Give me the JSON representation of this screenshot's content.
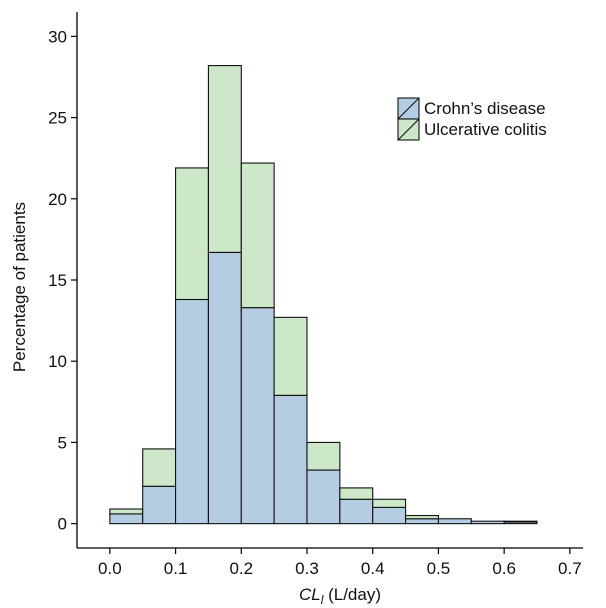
{
  "chart_data": {
    "type": "bar",
    "stacked": true,
    "bin_width": 0.05,
    "bin_starts": [
      0.0,
      0.05,
      0.1,
      0.15,
      0.2,
      0.25,
      0.3,
      0.35,
      0.4,
      0.45,
      0.5,
      0.55,
      0.6
    ],
    "series": [
      {
        "name": "Crohn’s disease",
        "color": "#b4cde3",
        "values": [
          0.6,
          2.3,
          13.8,
          16.7,
          13.3,
          7.9,
          3.3,
          1.5,
          1.0,
          0.3,
          0.3,
          0.15,
          0.1
        ]
      },
      {
        "name": "Ulcerative colitis",
        "color": "#cce8c8",
        "values": [
          0.3,
          2.3,
          8.1,
          11.5,
          8.9,
          4.8,
          1.7,
          0.7,
          0.5,
          0.2,
          0.0,
          0.0,
          0.05
        ]
      }
    ],
    "xlabel_main": "CL",
    "xlabel_sub": "l",
    "xlabel_unit": " (L/day)",
    "ylabel": "Percentage of patients",
    "xlim": [
      -0.05,
      0.72
    ],
    "ylim": [
      -1.5,
      31.5
    ],
    "xticks": [
      0.0,
      0.1,
      0.2,
      0.3,
      0.4,
      0.5,
      0.6,
      0.7
    ],
    "xtick_labels": [
      "0.0",
      "0.1",
      "0.2",
      "0.3",
      "0.4",
      "0.5",
      "0.6",
      "0.7"
    ],
    "yticks": [
      0,
      5,
      10,
      15,
      20,
      25,
      30
    ],
    "ytick_labels": [
      "0",
      "5",
      "10",
      "15",
      "20",
      "25",
      "30"
    ],
    "legend_position": "top-right",
    "grid": false
  }
}
